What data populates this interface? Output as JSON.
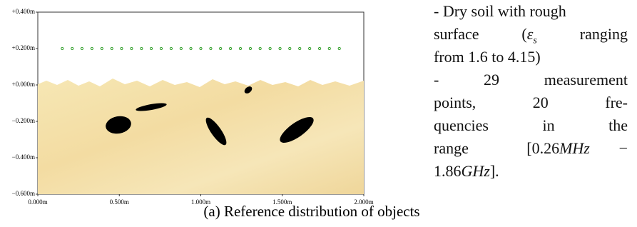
{
  "chart_data": {
    "type": "scatter",
    "x": [
      0.15,
      0.211,
      0.271,
      0.332,
      0.393,
      0.454,
      0.514,
      0.575,
      0.636,
      0.696,
      0.757,
      0.818,
      0.879,
      0.939,
      1.0,
      1.061,
      1.121,
      1.182,
      1.243,
      1.304,
      1.364,
      1.425,
      1.486,
      1.546,
      1.607,
      1.668,
      1.729,
      1.789,
      1.85
    ],
    "values": [
      0.2,
      0.2,
      0.2,
      0.2,
      0.2,
      0.2,
      0.2,
      0.2,
      0.2,
      0.2,
      0.2,
      0.2,
      0.2,
      0.2,
      0.2,
      0.2,
      0.2,
      0.2,
      0.2,
      0.2,
      0.2,
      0.2,
      0.2,
      0.2,
      0.2,
      0.2,
      0.2,
      0.2,
      0.2
    ],
    "color": "#33a02c",
    "xlim": [
      0,
      2
    ],
    "ylim": [
      -0.6,
      0.4
    ],
    "xticks": [
      {
        "value": 0,
        "label": "0.000m"
      },
      {
        "value": 0.5,
        "label": "0.500m"
      },
      {
        "value": 1,
        "label": "1.000m"
      },
      {
        "value": 1.5,
        "label": "1.500m"
      },
      {
        "value": 2,
        "label": "2.000m"
      }
    ],
    "yticks": [
      {
        "value": -0.6,
        "label": "−0.600m"
      },
      {
        "value": -0.4,
        "label": "−0.400m"
      },
      {
        "value": -0.2,
        "label": "−0.200m"
      },
      {
        "value": 0,
        "label": "+0.000m"
      },
      {
        "value": 0.2,
        "label": "+0.200m"
      },
      {
        "value": 0.4,
        "label": "+0.400m"
      }
    ]
  },
  "text": {
    "lines": [
      [
        "- Dry soil with rough"
      ],
      [
        "surface (",
        "ε",
        "s",
        " ranging"
      ],
      [
        "from 1.6 to 4.15)"
      ],
      [
        "-   29   measurement"
      ],
      [
        "points,   20   fre-"
      ],
      [
        "quencies   in   the"
      ],
      [
        "range  [0.26",
        "MHz",
        " −"
      ],
      [
        "1.86",
        "GHz",
        "]."
      ]
    ]
  },
  "caption": "(a) Reference distribution of objects"
}
